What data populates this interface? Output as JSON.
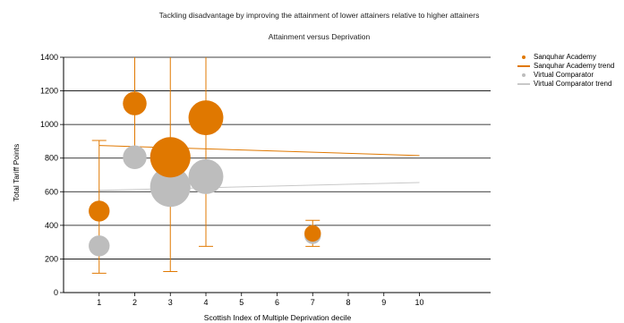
{
  "chart_data": {
    "type": "scatter",
    "title": "Tackling disadvantage by improving the attainment of lower attainers relative to higher attainers",
    "subtitle": "Attainment versus Deprivation",
    "xlabel": "Scottish Index of Multiple Deprivation decile",
    "ylabel": "Total Tariff Points",
    "xlim": [
      0,
      12
    ],
    "ylim": [
      0,
      1400
    ],
    "x_ticks": [
      1,
      2,
      3,
      4,
      5,
      6,
      7,
      8,
      9,
      10
    ],
    "y_ticks": [
      0,
      200,
      400,
      600,
      800,
      1000,
      1200,
      1400
    ],
    "grid": "horizontal",
    "legend_position": "right",
    "series": [
      {
        "name": "Sanquhar Academy",
        "kind": "bubble",
        "color": "#E07800",
        "points": [
          {
            "x": 1,
            "y": 485,
            "size": 2,
            "err_low": 115,
            "err_high": 905
          },
          {
            "x": 2,
            "y": 1125,
            "size": 2.5,
            "err_low": 850,
            "err_high": 1400
          },
          {
            "x": 3,
            "y": 805,
            "size": 5.5,
            "err_low": 125,
            "err_high": 1400
          },
          {
            "x": 4,
            "y": 1040,
            "size": 4.5,
            "err_low": 275,
            "err_high": 1400
          },
          {
            "x": 7,
            "y": 352,
            "size": 1.2,
            "err_low": 275,
            "err_high": 430
          }
        ]
      },
      {
        "name": "Sanquhar Academy trend",
        "kind": "line",
        "color": "#E07800",
        "x": [
          1,
          10
        ],
        "y": [
          875,
          815
        ]
      },
      {
        "name": "Virtual Comparator",
        "kind": "bubble",
        "color": "#BDBDBD",
        "points": [
          {
            "x": 1,
            "y": 278,
            "size": 2
          },
          {
            "x": 2,
            "y": 805,
            "size": 2.5
          },
          {
            "x": 3,
            "y": 630,
            "size": 5.5
          },
          {
            "x": 4,
            "y": 690,
            "size": 4.5
          },
          {
            "x": 7,
            "y": 338,
            "size": 1.2
          }
        ]
      },
      {
        "name": "Virtual Comparator trend",
        "kind": "line",
        "color": "#C8C8C8",
        "x": [
          1,
          10
        ],
        "y": [
          608,
          655
        ]
      }
    ]
  }
}
